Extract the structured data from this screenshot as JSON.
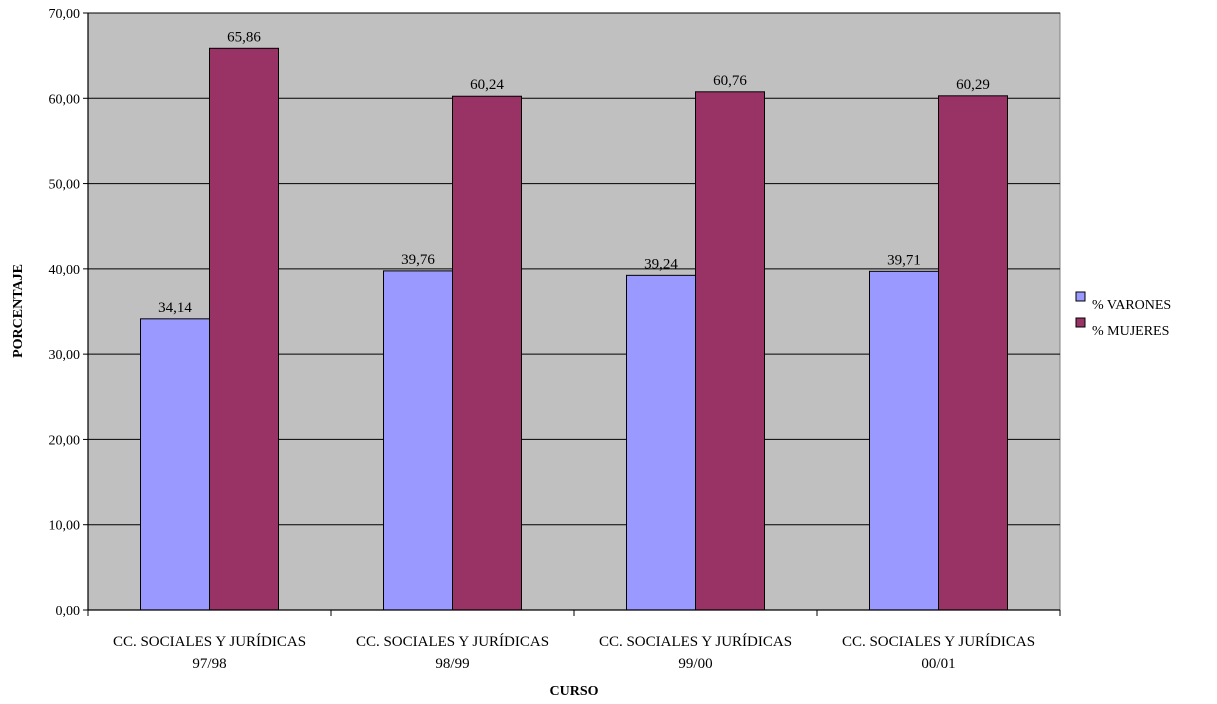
{
  "chart_data": {
    "type": "bar",
    "categories": [
      [
        "CC. SOCIALES Y JURÍDICAS",
        "97/98"
      ],
      [
        "CC. SOCIALES Y JURÍDICAS",
        "98/99"
      ],
      [
        "CC. SOCIALES Y JURÍDICAS",
        "99/00"
      ],
      [
        "CC. SOCIALES Y JURÍDICAS",
        "00/01"
      ]
    ],
    "series": [
      {
        "name": "% VARONES",
        "values": [
          34.14,
          39.76,
          39.24,
          39.71
        ],
        "value_labels": [
          "34,14",
          "39,76",
          "39,24",
          "39,71"
        ],
        "color": "#9999ff"
      },
      {
        "name": "% MUJERES",
        "values": [
          65.86,
          60.24,
          60.76,
          60.29
        ],
        "value_labels": [
          "65,86",
          "60,24",
          "60,76",
          "60,29"
        ],
        "color": "#993366"
      }
    ],
    "xlabel": "CURSO",
    "ylabel": "PORCENTAJE",
    "ylim": [
      0,
      70
    ],
    "yticks": [
      "0,00",
      "10,00",
      "20,00",
      "30,00",
      "40,00",
      "50,00",
      "60,00",
      "70,00"
    ],
    "ytick_values": [
      0,
      10,
      20,
      30,
      40,
      50,
      60,
      70
    ],
    "grid": true,
    "plot_background": "#c0c0c0",
    "legend_position": "right"
  }
}
